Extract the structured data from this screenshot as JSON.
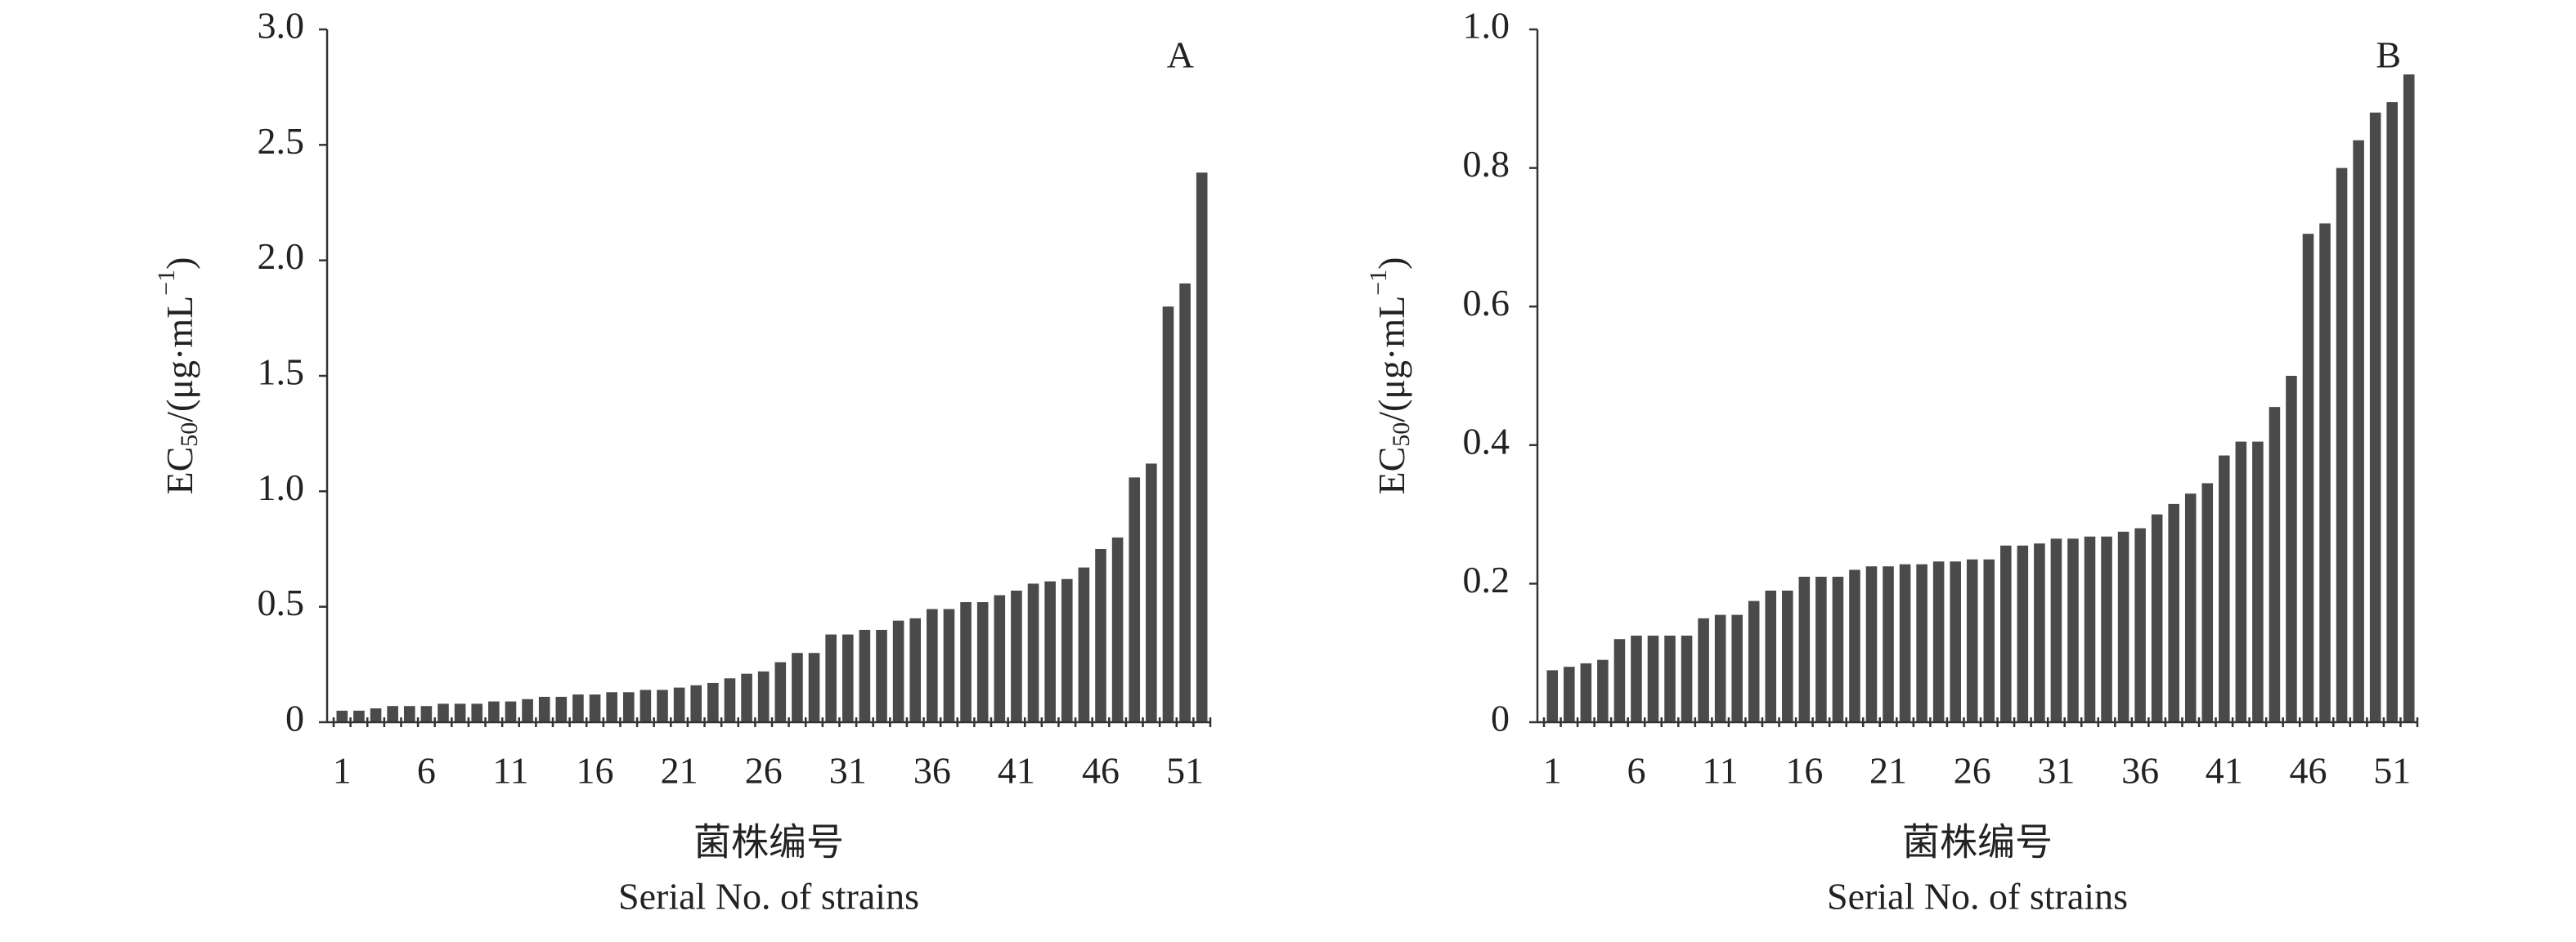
{
  "chart_data": [
    {
      "type": "bar",
      "panel_label": "A",
      "y_label": {
        "base": "EC",
        "sub": "50",
        "mid": "/(μg·mL",
        "sup": "−1",
        "end": ")"
      },
      "x_label": "菌株编号",
      "x_label_en": "Serial No. of strains",
      "categories": [
        "1",
        null,
        null,
        null,
        null,
        "6",
        null,
        null,
        null,
        null,
        "11",
        null,
        null,
        null,
        null,
        "16",
        null,
        null,
        null,
        null,
        "21",
        null,
        null,
        null,
        null,
        "26",
        null,
        null,
        null,
        null,
        "31",
        null,
        null,
        null,
        null,
        "36",
        null,
        null,
        null,
        null,
        "41",
        null,
        null,
        null,
        null,
        "46",
        null,
        null,
        null,
        null,
        "51",
        null
      ],
      "values": [
        0.05,
        0.05,
        0.06,
        0.07,
        0.07,
        0.07,
        0.08,
        0.08,
        0.08,
        0.09,
        0.09,
        0.1,
        0.11,
        0.11,
        0.12,
        0.12,
        0.13,
        0.13,
        0.14,
        0.14,
        0.15,
        0.16,
        0.17,
        0.19,
        0.21,
        0.22,
        0.26,
        0.3,
        0.3,
        0.38,
        0.38,
        0.4,
        0.4,
        0.44,
        0.45,
        0.49,
        0.49,
        0.52,
        0.52,
        0.55,
        0.57,
        0.6,
        0.61,
        0.62,
        0.67,
        0.75,
        0.8,
        1.06,
        1.12,
        1.8,
        1.9,
        2.38
      ],
      "color": "#4a4a4a",
      "ylim": [
        0,
        3
      ],
      "yticks": [
        0,
        0.5,
        {
          "value": 1,
          "label": "1.0"
        },
        1.5,
        {
          "value": 2,
          "label": "2.0"
        },
        2.5,
        {
          "value": 3,
          "label": "3.0"
        }
      ]
    },
    {
      "type": "bar",
      "panel_label": "B",
      "y_label": {
        "base": "EC",
        "sub": "50",
        "mid": "/(μg·mL",
        "sup": "−1",
        "end": ")"
      },
      "x_label": "菌株编号",
      "x_label_en": "Serial No. of strains",
      "categories": [
        "1",
        null,
        null,
        null,
        null,
        "6",
        null,
        null,
        null,
        null,
        "11",
        null,
        null,
        null,
        null,
        "16",
        null,
        null,
        null,
        null,
        "21",
        null,
        null,
        null,
        null,
        "26",
        null,
        null,
        null,
        null,
        "31",
        null,
        null,
        null,
        null,
        "36",
        null,
        null,
        null,
        null,
        "41",
        null,
        null,
        null,
        null,
        "46",
        null,
        null,
        null,
        null,
        "51",
        null
      ],
      "values": [
        0.075,
        0.08,
        0.085,
        0.09,
        0.12,
        0.125,
        0.125,
        0.125,
        0.125,
        0.15,
        0.155,
        0.155,
        0.175,
        0.19,
        0.19,
        0.21,
        0.21,
        0.21,
        0.22,
        0.225,
        0.225,
        0.228,
        0.228,
        0.232,
        0.232,
        0.235,
        0.235,
        0.255,
        0.255,
        0.258,
        0.265,
        0.265,
        0.268,
        0.268,
        0.275,
        0.28,
        0.3,
        0.315,
        0.33,
        0.345,
        0.385,
        0.405,
        0.405,
        0.455,
        0.5,
        0.705,
        0.72,
        0.8,
        0.84,
        0.88,
        0.895,
        0.935
      ],
      "color": "#4a4a4a",
      "ylim": [
        0,
        1
      ],
      "yticks": [
        0,
        0.2,
        0.4,
        0.6,
        0.8,
        {
          "value": 1,
          "label": "1.0"
        }
      ]
    }
  ]
}
